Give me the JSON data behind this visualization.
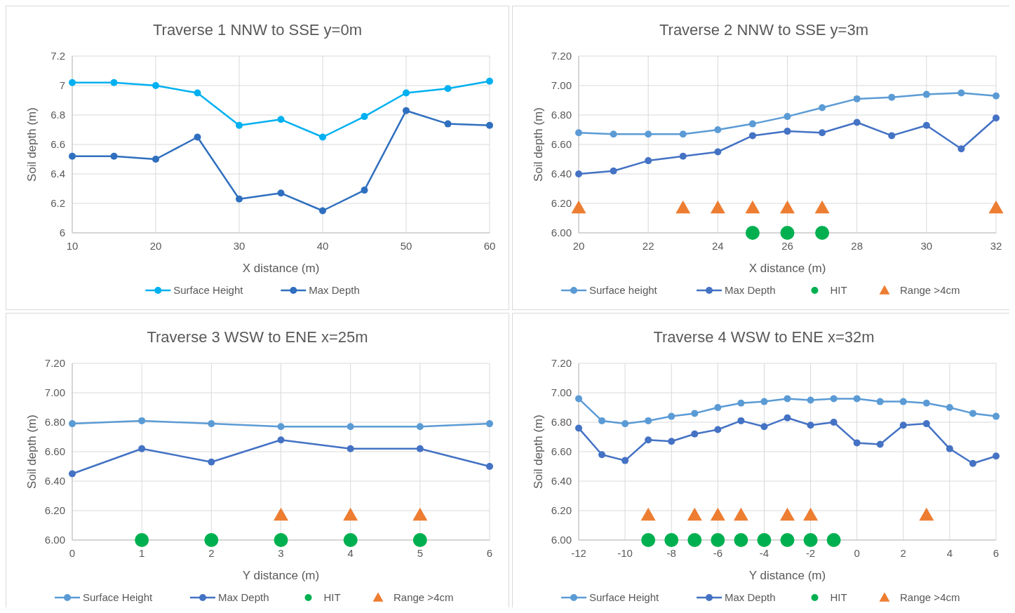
{
  "chart_data": [
    {
      "type": "line",
      "title": "Traverse 1 NNW to SSE y=0m",
      "xlabel": "X distance (m)",
      "ylabel": "Soil depth (m)",
      "xlim": [
        10,
        60
      ],
      "xticks": [
        10,
        20,
        30,
        40,
        50,
        60
      ],
      "ylim": [
        6,
        7.2
      ],
      "yticks": [
        6,
        6.2,
        6.4,
        6.6,
        6.8,
        7,
        7.2
      ],
      "grid": true,
      "legend": "bottom",
      "marker": "circle",
      "line_style": "solid",
      "x": [
        10,
        15,
        20,
        25,
        30,
        35,
        40,
        45,
        50,
        55,
        60
      ],
      "series": [
        {
          "name": "Surface Height",
          "color": "#00b0f0",
          "values": [
            7.02,
            7.02,
            7.0,
            6.95,
            6.73,
            6.77,
            6.65,
            6.79,
            6.95,
            6.98,
            7.03
          ]
        },
        {
          "name": "Max Depth",
          "color": "#2f6fbf",
          "values": [
            6.52,
            6.52,
            6.5,
            6.65,
            6.23,
            6.27,
            6.15,
            6.29,
            6.83,
            6.74,
            6.73
          ]
        }
      ]
    },
    {
      "type": "line",
      "title": "Traverse 2 NNW to SSE y=3m",
      "xlabel": "X distance (m)",
      "ylabel": "Soil depth (m)",
      "xlim": [
        20,
        32
      ],
      "xticks": [
        20,
        22,
        24,
        26,
        28,
        30,
        32
      ],
      "ylim": [
        6,
        7.2
      ],
      "yticks": [
        {
          "value": 6,
          "label": "6.00"
        },
        {
          "value": 6.2,
          "label": "6.20"
        },
        {
          "value": 6.4,
          "label": "6.40"
        },
        {
          "value": 6.6,
          "label": "6.60"
        },
        {
          "value": 6.8,
          "label": "6.80"
        },
        {
          "value": 7,
          "label": "7.00"
        },
        {
          "value": 7.2,
          "label": "7.20"
        }
      ],
      "grid": true,
      "legend": "bottom",
      "line_style": "solid",
      "x": [
        20,
        21,
        22,
        23,
        24,
        25,
        26,
        27,
        28,
        29,
        30,
        31,
        32
      ],
      "series": [
        {
          "name": "Surface height",
          "color": "#5b9bd5",
          "marker": "circle",
          "values": [
            6.68,
            6.67,
            6.67,
            6.67,
            6.7,
            6.74,
            6.79,
            6.85,
            6.91,
            6.92,
            6.94,
            6.95,
            6.93
          ]
        },
        {
          "name": "Max Depth",
          "color": "#4472c4",
          "marker": "circle",
          "values": [
            6.4,
            6.42,
            6.49,
            6.52,
            6.55,
            6.66,
            6.69,
            6.68,
            6.75,
            6.66,
            6.73,
            6.57,
            6.78
          ]
        },
        {
          "name": "HIT",
          "type": "scatter",
          "marker": "circle",
          "color": "#00b050",
          "x": [
            25,
            26,
            27
          ],
          "values": [
            6,
            6,
            6
          ]
        },
        {
          "name": "Range >4cm",
          "type": "scatter",
          "marker": "triangle",
          "color": "#ed7d31",
          "x": [
            20,
            23,
            24,
            25,
            26,
            27,
            32
          ],
          "values": [
            6.17,
            6.17,
            6.17,
            6.17,
            6.17,
            6.17,
            6.17
          ]
        }
      ]
    },
    {
      "type": "line",
      "title": "Traverse 3 WSW to ENE x=25m",
      "xlabel": "Y distance (m)",
      "ylabel": "Soil depth (m)",
      "xlim": [
        0,
        6
      ],
      "xticks": [
        0,
        1,
        2,
        3,
        4,
        5,
        6
      ],
      "ylim": [
        6,
        7.2
      ],
      "yticks": [
        {
          "value": 6,
          "label": "6.00"
        },
        {
          "value": 6.2,
          "label": "6.20"
        },
        {
          "value": 6.4,
          "label": "6.40"
        },
        {
          "value": 6.6,
          "label": "6.60"
        },
        {
          "value": 6.8,
          "label": "6.80"
        },
        {
          "value": 7,
          "label": "7.00"
        },
        {
          "value": 7.2,
          "label": "7.20"
        }
      ],
      "grid": true,
      "legend": "bottom",
      "line_style": "solid",
      "x": [
        0,
        1,
        2,
        3,
        4,
        5,
        6
      ],
      "series": [
        {
          "name": "Surface Height",
          "color": "#5b9bd5",
          "marker": "circle",
          "values": [
            6.79,
            6.81,
            6.79,
            6.77,
            6.77,
            6.77,
            6.79
          ]
        },
        {
          "name": "Max Depth",
          "color": "#4472c4",
          "marker": "circle",
          "values": [
            6.45,
            6.62,
            6.53,
            6.68,
            6.62,
            6.62,
            6.5
          ]
        },
        {
          "name": "HIT",
          "type": "scatter",
          "marker": "circle",
          "color": "#00b050",
          "x": [
            1,
            2,
            3,
            4,
            5
          ],
          "values": [
            6,
            6,
            6,
            6,
            6
          ]
        },
        {
          "name": "Range >4cm",
          "type": "scatter",
          "marker": "triangle",
          "color": "#ed7d31",
          "x": [
            3,
            4,
            5
          ],
          "values": [
            6.17,
            6.17,
            6.17
          ]
        }
      ]
    },
    {
      "type": "line",
      "title": "Traverse 4 WSW to ENE x=32m",
      "xlabel": "Y distance (m)",
      "ylabel": "Soil depth (m)",
      "xlim": [
        -12,
        6
      ],
      "xticks": [
        -12,
        -10,
        -8,
        -6,
        -4,
        -2,
        0,
        2,
        4,
        6
      ],
      "ylim": [
        6,
        7.2
      ],
      "yticks": [
        {
          "value": 6,
          "label": "6.00"
        },
        {
          "value": 6.2,
          "label": "6.20"
        },
        {
          "value": 6.4,
          "label": "6.40"
        },
        {
          "value": 6.6,
          "label": "6.60"
        },
        {
          "value": 6.8,
          "label": "6.80"
        },
        {
          "value": 7,
          "label": "7.00"
        },
        {
          "value": 7.2,
          "label": "7.20"
        }
      ],
      "grid": true,
      "legend": "bottom",
      "line_style": "solid",
      "x": [
        -12,
        -11,
        -10,
        -9,
        -8,
        -7,
        -6,
        -5,
        -4,
        -3,
        -2,
        -1,
        0,
        1,
        2,
        3,
        4,
        5,
        6
      ],
      "series": [
        {
          "name": "Surface Height",
          "color": "#5b9bd5",
          "marker": "circle",
          "values": [
            6.96,
            6.81,
            6.79,
            6.81,
            6.84,
            6.86,
            6.9,
            6.93,
            6.94,
            6.96,
            6.95,
            6.96,
            6.96,
            6.94,
            6.94,
            6.93,
            6.9,
            6.86,
            6.84
          ]
        },
        {
          "name": "Max Depth",
          "color": "#4472c4",
          "marker": "circle",
          "values": [
            6.76,
            6.58,
            6.54,
            6.68,
            6.67,
            6.72,
            6.75,
            6.81,
            6.77,
            6.83,
            6.78,
            6.8,
            6.66,
            6.65,
            6.78,
            6.79,
            6.62,
            6.52,
            6.57
          ]
        },
        {
          "name": "HIT",
          "type": "scatter",
          "marker": "circle",
          "color": "#00b050",
          "x": [
            -9,
            -8,
            -7,
            -6,
            -5,
            -4,
            -3,
            -2,
            -1
          ],
          "values": [
            6,
            6,
            6,
            6,
            6,
            6,
            6,
            6,
            6
          ]
        },
        {
          "name": "Range >4cm",
          "type": "scatter",
          "marker": "triangle",
          "color": "#ed7d31",
          "x": [
            -9,
            -7,
            -6,
            -5,
            -3,
            -2,
            3
          ],
          "values": [
            6.17,
            6.17,
            6.17,
            6.17,
            6.17,
            6.17,
            6.17
          ]
        }
      ]
    }
  ]
}
